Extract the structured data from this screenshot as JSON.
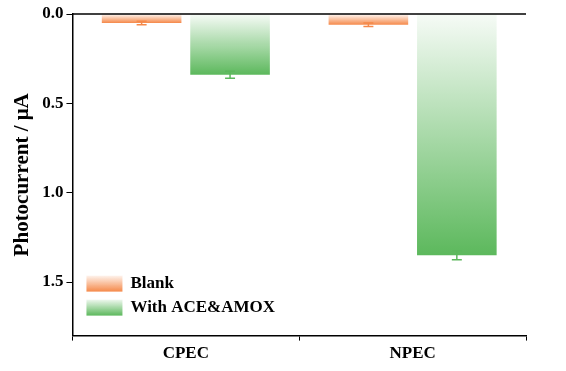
{
  "chart_data": {
    "type": "bar",
    "categories": [
      "CPEC",
      "NPEC"
    ],
    "series": [
      {
        "name": "Blank",
        "color": "#f5894a",
        "values": [
          0.05,
          0.06
        ],
        "errors": [
          0.01,
          0.01
        ]
      },
      {
        "name": "With ACE&AMOX",
        "color": "#5cb85c",
        "values": [
          0.34,
          1.35
        ],
        "errors": [
          0.02,
          0.025
        ]
      }
    ],
    "y_label": "Photocurrent / μA",
    "ylim": [
      0,
      1.8
    ],
    "yticks": [
      {
        "value": 0,
        "label": "0.0"
      },
      0.5,
      {
        "value": 1,
        "label": "1.0"
      },
      1.5
    ],
    "grid": false,
    "legend": "lower left"
  }
}
